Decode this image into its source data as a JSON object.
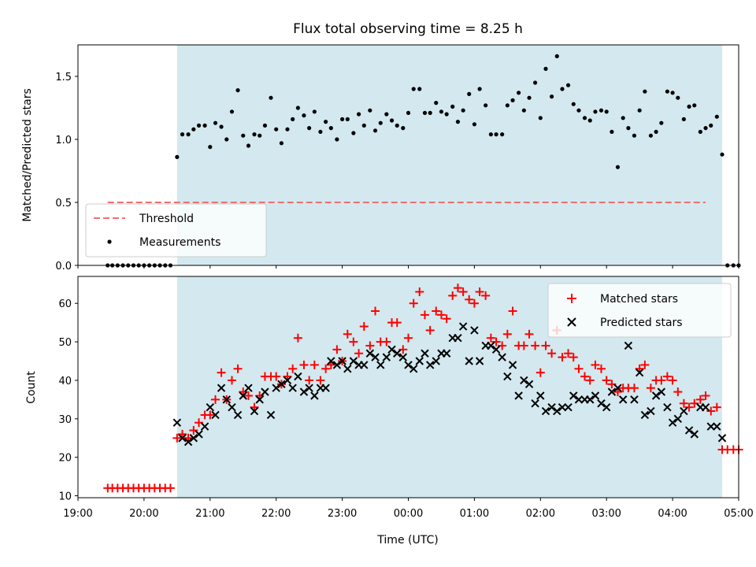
{
  "chart_data": [
    {
      "type": "scatter",
      "title": "Flux total observing time = 8.25 h",
      "xlabel": "",
      "ylabel": "Matched/Predicted stars",
      "x_unit": "hours after 19:00 UTC",
      "xlim": [
        19.0,
        29.0
      ],
      "ylim": [
        0.0,
        1.75
      ],
      "yticks": [
        0.0,
        0.5,
        1.0,
        1.5
      ],
      "ytick_labels": [
        "0.0",
        "0.5",
        "1.0",
        "1.5"
      ],
      "observing_window": [
        20.5,
        28.75
      ],
      "threshold": {
        "name": "Threshold",
        "value": 0.5,
        "x_range": [
          19.45,
          29.0
        ],
        "color": "#f07070"
      },
      "shade_color": "#d3e9ef",
      "legend": {
        "position": "lower-left",
        "entries": [
          "Threshold",
          "Measurements"
        ]
      },
      "series": [
        {
          "name": "Measurements",
          "color": "#000000",
          "marker": "dot",
          "x": [
            19.45,
            19.52,
            19.6,
            19.68,
            19.76,
            19.84,
            19.92,
            20.0,
            20.08,
            20.16,
            20.24,
            20.32,
            20.4,
            20.5,
            20.58,
            20.67,
            20.75,
            20.83,
            20.92,
            21.0,
            21.08,
            21.17,
            21.25,
            21.33,
            21.42,
            21.5,
            21.58,
            21.67,
            21.75,
            21.83,
            21.92,
            22.0,
            22.08,
            22.17,
            22.25,
            22.33,
            22.42,
            22.5,
            22.58,
            22.67,
            22.75,
            22.83,
            22.92,
            23.0,
            23.08,
            23.17,
            23.25,
            23.33,
            23.42,
            23.5,
            23.58,
            23.67,
            23.75,
            23.83,
            23.92,
            24.0,
            24.08,
            24.17,
            24.25,
            24.33,
            24.42,
            24.5,
            24.58,
            24.67,
            24.75,
            24.83,
            24.92,
            25.0,
            25.08,
            25.17,
            25.25,
            25.33,
            25.42,
            25.5,
            25.58,
            25.67,
            25.75,
            25.83,
            25.92,
            26.0,
            26.08,
            26.17,
            26.25,
            26.33,
            26.42,
            26.5,
            26.58,
            26.67,
            26.75,
            26.83,
            26.92,
            27.0,
            27.08,
            27.17,
            27.25,
            27.33,
            27.42,
            27.5,
            27.58,
            27.67,
            27.75,
            27.83,
            27.92,
            28.0,
            28.08,
            28.17,
            28.25,
            28.33,
            28.42,
            28.5,
            28.58,
            28.67,
            28.75,
            28.83,
            28.92,
            29.0
          ],
          "y": [
            0.0,
            0.0,
            0.0,
            0.0,
            0.0,
            0.0,
            0.0,
            0.0,
            0.0,
            0.0,
            0.0,
            0.0,
            0.0,
            0.86,
            1.04,
            1.04,
            1.08,
            1.11,
            1.11,
            0.94,
            1.13,
            1.1,
            1.0,
            1.22,
            1.39,
            1.03,
            0.95,
            1.04,
            1.03,
            1.11,
            1.33,
            1.08,
            0.97,
            1.08,
            1.16,
            1.25,
            1.19,
            1.09,
            1.22,
            1.06,
            1.14,
            1.09,
            1.0,
            1.16,
            1.16,
            1.05,
            1.2,
            1.11,
            1.23,
            1.07,
            1.13,
            1.2,
            1.15,
            1.11,
            1.09,
            1.21,
            1.4,
            1.4,
            1.21,
            1.21,
            1.29,
            1.22,
            1.2,
            1.26,
            1.14,
            1.23,
            1.36,
            1.12,
            1.4,
            1.27,
            1.04,
            1.04,
            1.04,
            1.27,
            1.31,
            1.37,
            1.23,
            1.33,
            1.45,
            1.17,
            1.56,
            1.34,
            1.66,
            1.4,
            1.43,
            1.28,
            1.23,
            1.17,
            1.15,
            1.22,
            1.23,
            1.22,
            1.06,
            0.78,
            1.17,
            1.09,
            1.03,
            1.23,
            1.38,
            1.03,
            1.06,
            1.13,
            1.38,
            1.37,
            1.33,
            1.16,
            1.26,
            1.27,
            1.06,
            1.09,
            1.11,
            1.18,
            0.88,
            0.0,
            0.0,
            0.0
          ]
        }
      ]
    },
    {
      "type": "scatter",
      "title": "",
      "xlabel": "Time (UTC)",
      "ylabel": "Count",
      "x_unit": "hours after 19:00 UTC",
      "xlim": [
        19.0,
        29.0
      ],
      "ylim": [
        9.5,
        67.0
      ],
      "xticks": [
        19,
        20,
        21,
        22,
        23,
        24,
        25,
        26,
        27,
        28,
        29
      ],
      "xtick_labels": [
        "19:00",
        "20:00",
        "21:00",
        "22:00",
        "23:00",
        "00:00",
        "01:00",
        "02:00",
        "03:00",
        "04:00",
        "05:00"
      ],
      "yticks": [
        10,
        20,
        30,
        40,
        50,
        60
      ],
      "ytick_labels": [
        "10",
        "20",
        "30",
        "40",
        "50",
        "60"
      ],
      "observing_window": [
        20.5,
        28.75
      ],
      "shade_color": "#d3e9ef",
      "legend": {
        "position": "upper-right",
        "entries": [
          "Matched stars",
          "Predicted stars"
        ]
      },
      "series": [
        {
          "name": "Matched stars",
          "color": "#ff0000",
          "marker": "plus",
          "x": [
            19.45,
            19.52,
            19.6,
            19.68,
            19.76,
            19.84,
            19.92,
            20.0,
            20.08,
            20.16,
            20.24,
            20.32,
            20.4,
            20.5,
            20.58,
            20.67,
            20.75,
            20.83,
            20.92,
            21.0,
            21.08,
            21.17,
            21.25,
            21.33,
            21.42,
            21.5,
            21.58,
            21.67,
            21.75,
            21.83,
            21.92,
            22.0,
            22.08,
            22.17,
            22.25,
            22.33,
            22.42,
            22.5,
            22.58,
            22.67,
            22.75,
            22.83,
            22.92,
            23.0,
            23.08,
            23.17,
            23.25,
            23.33,
            23.42,
            23.5,
            23.58,
            23.67,
            23.75,
            23.83,
            23.92,
            24.0,
            24.08,
            24.17,
            24.25,
            24.33,
            24.42,
            24.5,
            24.58,
            24.67,
            24.75,
            24.83,
            24.92,
            25.0,
            25.08,
            25.17,
            25.25,
            25.33,
            25.42,
            25.5,
            25.58,
            25.67,
            25.75,
            25.83,
            25.92,
            26.0,
            26.08,
            26.17,
            26.25,
            26.33,
            26.42,
            26.5,
            26.58,
            26.67,
            26.75,
            26.83,
            26.92,
            27.0,
            27.08,
            27.17,
            27.25,
            27.33,
            27.42,
            27.5,
            27.58,
            27.67,
            27.75,
            27.83,
            27.92,
            28.0,
            28.08,
            28.17,
            28.25,
            28.33,
            28.42,
            28.5,
            28.58,
            28.67,
            28.75,
            28.83,
            28.92,
            29.0
          ],
          "y": [
            12,
            12,
            12,
            12,
            12,
            12,
            12,
            12,
            12,
            12,
            12,
            12,
            12,
            25,
            26,
            25,
            27,
            29,
            31,
            31,
            35,
            42,
            35,
            40,
            43,
            37,
            36,
            33,
            36,
            41,
            41,
            41,
            39,
            41,
            43,
            51,
            44,
            40,
            44,
            40,
            43,
            44,
            48,
            45,
            52,
            50,
            47,
            54,
            49,
            58,
            50,
            50,
            55,
            55,
            48,
            51,
            60,
            63,
            57,
            53,
            58,
            57,
            56,
            62,
            64,
            63,
            61,
            60,
            63,
            62,
            51,
            50,
            49,
            52,
            58,
            49,
            49,
            52,
            49,
            42,
            49,
            47,
            53,
            46,
            47,
            46,
            43,
            41,
            40,
            44,
            43,
            40,
            39,
            37,
            38,
            38,
            38,
            43,
            44,
            38,
            40,
            40,
            41,
            40,
            37,
            34,
            33,
            34,
            35,
            36,
            32,
            33,
            22,
            22,
            22,
            22
          ]
        },
        {
          "name": "Predicted stars",
          "color": "#000000",
          "marker": "x",
          "x": [
            20.5,
            20.58,
            20.67,
            20.75,
            20.83,
            20.92,
            21.0,
            21.08,
            21.17,
            21.25,
            21.33,
            21.42,
            21.5,
            21.58,
            21.67,
            21.75,
            21.83,
            21.92,
            22.0,
            22.08,
            22.17,
            22.25,
            22.33,
            22.42,
            22.5,
            22.58,
            22.67,
            22.75,
            22.83,
            22.92,
            23.0,
            23.08,
            23.17,
            23.25,
            23.33,
            23.42,
            23.5,
            23.58,
            23.67,
            23.75,
            23.83,
            23.92,
            24.0,
            24.08,
            24.17,
            24.25,
            24.33,
            24.42,
            24.5,
            24.58,
            24.67,
            24.75,
            24.83,
            24.92,
            25.0,
            25.08,
            25.17,
            25.25,
            25.33,
            25.42,
            25.5,
            25.58,
            25.67,
            25.75,
            25.83,
            25.92,
            26.0,
            26.08,
            26.17,
            26.25,
            26.33,
            26.42,
            26.5,
            26.58,
            26.67,
            26.75,
            26.83,
            26.92,
            27.0,
            27.08,
            27.17,
            27.25,
            27.33,
            27.42,
            27.5,
            27.58,
            27.67,
            27.75,
            27.83,
            27.92,
            28.0,
            28.08,
            28.17,
            28.25,
            28.33,
            28.42,
            28.5,
            28.58,
            28.67,
            28.75
          ],
          "y": [
            29,
            25,
            24,
            25,
            26,
            28,
            33,
            31,
            38,
            35,
            33,
            31,
            36,
            38,
            32,
            35,
            37,
            31,
            38,
            39,
            40,
            38,
            41,
            37,
            38,
            36,
            38,
            38,
            45,
            44,
            45,
            43,
            45,
            44,
            44,
            47,
            46,
            44,
            46,
            48,
            47,
            46,
            44,
            43,
            45,
            47,
            44,
            45,
            47,
            47,
            51,
            51,
            54,
            45,
            53,
            45,
            49,
            49,
            48,
            46,
            41,
            44,
            36,
            40,
            39,
            34,
            36,
            32,
            33,
            32,
            33,
            33,
            36,
            35,
            35,
            35,
            36,
            34,
            33,
            37,
            38,
            35,
            49,
            35,
            42,
            31,
            32,
            36,
            37,
            33,
            29,
            30,
            32,
            27,
            26,
            33,
            33,
            28,
            28,
            25
          ]
        }
      ]
    }
  ]
}
